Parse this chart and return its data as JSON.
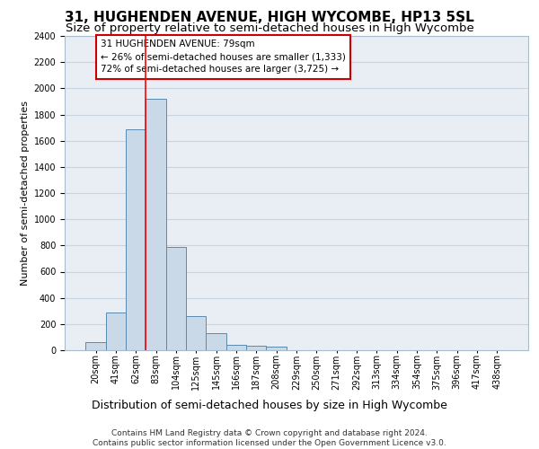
{
  "title": "31, HUGHENDEN AVENUE, HIGH WYCOMBE, HP13 5SL",
  "subtitle": "Size of property relative to semi-detached houses in High Wycombe",
  "xlabel": "Distribution of semi-detached houses by size in High Wycombe",
  "ylabel": "Number of semi-detached properties",
  "bin_labels": [
    "20sqm",
    "41sqm",
    "62sqm",
    "83sqm",
    "104sqm",
    "125sqm",
    "145sqm",
    "166sqm",
    "187sqm",
    "208sqm",
    "229sqm",
    "250sqm",
    "271sqm",
    "292sqm",
    "313sqm",
    "334sqm",
    "354sqm",
    "375sqm",
    "396sqm",
    "417sqm",
    "438sqm"
  ],
  "bar_values": [
    60,
    290,
    1690,
    1920,
    790,
    260,
    130,
    40,
    35,
    30,
    0,
    0,
    0,
    0,
    0,
    0,
    0,
    0,
    0,
    0,
    0
  ],
  "bar_color": "#c9d9e8",
  "bar_edgecolor": "#5a8ab0",
  "grid_color": "#c8d4e0",
  "background_color": "#e8eef4",
  "ylim": [
    0,
    2400
  ],
  "yticks": [
    0,
    200,
    400,
    600,
    800,
    1000,
    1200,
    1400,
    1600,
    1800,
    2000,
    2200,
    2400
  ],
  "redline_x": 2.5,
  "annotation_text": "31 HUGHENDEN AVENUE: 79sqm\n← 26% of semi-detached houses are smaller (1,333)\n72% of semi-detached houses are larger (3,725) →",
  "annotation_box_color": "#ffffff",
  "annotation_box_edgecolor": "#cc0000",
  "footer_text": "Contains HM Land Registry data © Crown copyright and database right 2024.\nContains public sector information licensed under the Open Government Licence v3.0.",
  "title_fontsize": 11,
  "subtitle_fontsize": 9.5,
  "xlabel_fontsize": 9,
  "ylabel_fontsize": 8,
  "tick_fontsize": 7,
  "annotation_fontsize": 7.5,
  "footer_fontsize": 6.5
}
